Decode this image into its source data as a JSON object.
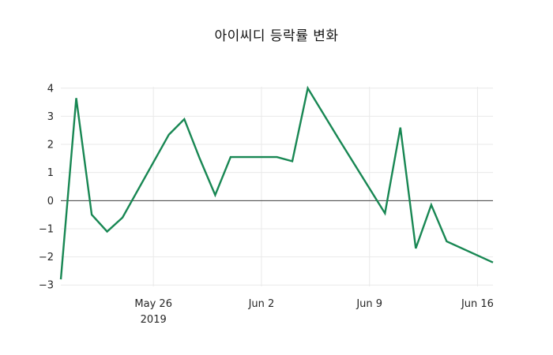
{
  "title": "아이씨디 등락률 변화",
  "colors": {
    "background": "#ffffff",
    "line": "#188753",
    "grid": "#e9e9e9",
    "zero_line": "#3b3b3b",
    "title_text": "#111111",
    "tick_text": "#262626"
  },
  "chart_data": {
    "type": "line",
    "title": "아이씨디 등락률 변화",
    "xlabel": "",
    "ylabel": "",
    "grid": true,
    "legend": "none",
    "ylim": [
      -3.05,
      4.05
    ],
    "y_ticks": [
      -3,
      -2,
      -1,
      0,
      1,
      2,
      3,
      4
    ],
    "y_tick_labels": [
      "−3",
      "−2",
      "−1",
      "0",
      "1",
      "2",
      "3",
      "4"
    ],
    "x_ticks": [
      {
        "date": "2019-05-26",
        "label": "May 26",
        "sublabel": "2019"
      },
      {
        "date": "2019-06-02",
        "label": "Jun 2",
        "sublabel": ""
      },
      {
        "date": "2019-06-09",
        "label": "Jun 9",
        "sublabel": ""
      },
      {
        "date": "2019-06-16",
        "label": "Jun 16",
        "sublabel": ""
      }
    ],
    "series": [
      {
        "name": "아이씨디 등락률",
        "points": [
          {
            "date": "2019-05-20",
            "value": -2.8
          },
          {
            "date": "2019-05-21",
            "value": 3.65
          },
          {
            "date": "2019-05-22",
            "value": -0.5
          },
          {
            "date": "2019-05-23",
            "value": -1.1
          },
          {
            "date": "2019-05-24",
            "value": -0.6
          },
          {
            "date": "2019-05-27",
            "value": 2.35
          },
          {
            "date": "2019-05-28",
            "value": 2.9
          },
          {
            "date": "2019-05-29",
            "value": 1.5
          },
          {
            "date": "2019-05-30",
            "value": 0.2
          },
          {
            "date": "2019-05-31",
            "value": 1.55
          },
          {
            "date": "2019-06-03",
            "value": 1.55
          },
          {
            "date": "2019-06-04",
            "value": 1.4
          },
          {
            "date": "2019-06-05",
            "value": 4.0
          },
          {
            "date": "2019-06-07",
            "value": 2.2
          },
          {
            "date": "2019-06-10",
            "value": -0.45
          },
          {
            "date": "2019-06-11",
            "value": 2.6
          },
          {
            "date": "2019-06-12",
            "value": -1.7
          },
          {
            "date": "2019-06-13",
            "value": -0.15
          },
          {
            "date": "2019-06-14",
            "value": -1.45
          },
          {
            "date": "2019-06-17",
            "value": -2.2
          }
        ]
      }
    ]
  }
}
